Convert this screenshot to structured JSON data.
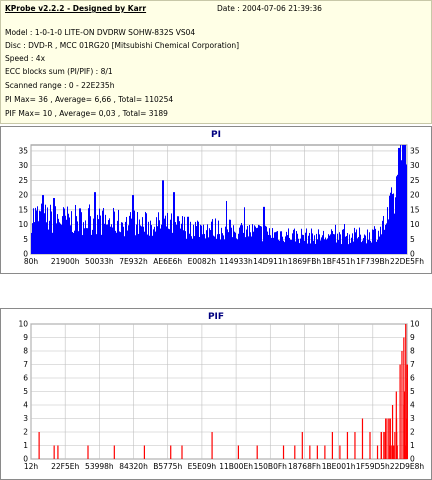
{
  "header": {
    "app_title": "KProbe v2.2.2 - Designed by Karr",
    "date": "Date : 2004-07-06 21:39:36",
    "model": "Model : 1-0-1-0 LITE-ON DVDRW SOHW-832S  VS04",
    "disc": "Disc : DVD-R , MCC 01RG20   [Mitsubishi Chemical Corporation]",
    "speed": "Speed : 4x",
    "ecc": "ECC blocks sum (PI/PIF) : 8/1",
    "range": "Scanned range : 0 - 22E235h",
    "pi_stats": "PI Max= 36 , Average= 6,66 , Total= 110254",
    "pif_stats": "PIF Max= 10 , Average= 0,03 , Total= 3189"
  },
  "colors": {
    "pi": "#0000ff",
    "pif": "#ff0000",
    "plot_bg": "#ffffff",
    "grid": "#c0c0c0",
    "title": "#000080"
  },
  "chart_data": [
    {
      "type": "bar",
      "title": "PI",
      "xlabel": "",
      "ylabel": "",
      "ylim": [
        0,
        37
      ],
      "yticks": [
        0,
        5,
        10,
        15,
        20,
        25,
        30,
        35
      ],
      "xticks": [
        "80h",
        "21900h",
        "50033h",
        "7E932h",
        "AE6E6h",
        "E0082h",
        "114933h",
        "14D911h",
        "1869FBh",
        "1BF451h",
        "1F739Bh",
        "22DE5Fh"
      ],
      "grid": true,
      "profile": [
        [
          0,
          13
        ],
        [
          0.02,
          12.5
        ],
        [
          0.05,
          12
        ],
        [
          0.1,
          11.5
        ],
        [
          0.15,
          11.5
        ],
        [
          0.2,
          11
        ],
        [
          0.25,
          10.5
        ],
        [
          0.3,
          10
        ],
        [
          0.35,
          10
        ],
        [
          0.4,
          9.5
        ],
        [
          0.45,
          9
        ],
        [
          0.5,
          8.5
        ],
        [
          0.55,
          8
        ],
        [
          0.6,
          7.5
        ],
        [
          0.65,
          7
        ],
        [
          0.7,
          6.5
        ],
        [
          0.75,
          6
        ],
        [
          0.8,
          6
        ],
        [
          0.85,
          6
        ],
        [
          0.9,
          6.5
        ],
        [
          0.93,
          8
        ],
        [
          0.95,
          12
        ],
        [
          0.97,
          20
        ],
        [
          0.985,
          27
        ],
        [
          1.0,
          33
        ]
      ],
      "spikes": [
        [
          0.03,
          20
        ],
        [
          0.06,
          19
        ],
        [
          0.17,
          21
        ],
        [
          0.27,
          20
        ],
        [
          0.35,
          25
        ],
        [
          0.38,
          21
        ],
        [
          0.52,
          18
        ],
        [
          0.62,
          16
        ],
        [
          0.98,
          36
        ],
        [
          0.99,
          34
        ]
      ]
    },
    {
      "type": "bar",
      "title": "PIF",
      "xlabel": "",
      "ylabel": "",
      "ylim": [
        0,
        10
      ],
      "yticks": [
        0,
        1,
        2,
        3,
        4,
        5,
        6,
        7,
        8,
        9,
        10
      ],
      "xticks": [
        "12h",
        "22F5Eh",
        "53998h",
        "84320h",
        "B5775h",
        "E5E09h",
        "11B00Eh",
        "150B0Fh",
        "18768Fh",
        "1BE001h",
        "1F59D5h",
        "22D9E8h"
      ],
      "grid": true,
      "events": [
        [
          0.02,
          2
        ],
        [
          0.06,
          1
        ],
        [
          0.07,
          1
        ],
        [
          0.15,
          1
        ],
        [
          0.22,
          1
        ],
        [
          0.3,
          1
        ],
        [
          0.37,
          1
        ],
        [
          0.4,
          1
        ],
        [
          0.48,
          2
        ],
        [
          0.55,
          1
        ],
        [
          0.6,
          1
        ],
        [
          0.67,
          1
        ],
        [
          0.7,
          1
        ],
        [
          0.72,
          2
        ],
        [
          0.74,
          1
        ],
        [
          0.76,
          1
        ],
        [
          0.78,
          1
        ],
        [
          0.8,
          2
        ],
        [
          0.82,
          1
        ],
        [
          0.84,
          2
        ],
        [
          0.86,
          2
        ],
        [
          0.88,
          3
        ],
        [
          0.9,
          2
        ],
        [
          0.92,
          1
        ],
        [
          0.94,
          2
        ],
        [
          0.95,
          3
        ],
        [
          0.96,
          4
        ],
        [
          0.97,
          5
        ],
        [
          0.98,
          7
        ],
        [
          0.985,
          8
        ],
        [
          0.99,
          9
        ],
        [
          0.995,
          10
        ]
      ]
    }
  ]
}
